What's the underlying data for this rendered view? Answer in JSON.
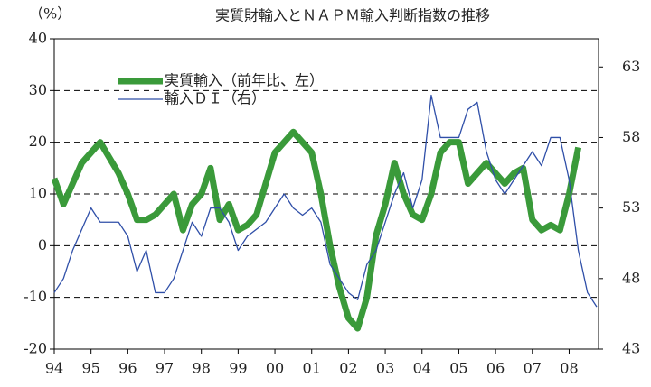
{
  "chart_data": {
    "type": "line",
    "title": "実質財輸入とＮＡＰＭ輸入判断指数の推移",
    "y_label": "（%）",
    "x": [
      1994,
      1994.25,
      1994.5,
      1994.75,
      1995,
      1995.25,
      1995.5,
      1995.75,
      1996,
      1996.25,
      1996.5,
      1996.75,
      1997,
      1997.25,
      1997.5,
      1997.75,
      1998,
      1998.25,
      1998.5,
      1998.75,
      1999,
      1999.25,
      1999.5,
      1999.75,
      2000,
      2000.25,
      2000.5,
      2000.75,
      2001,
      2001.25,
      2001.5,
      2001.75,
      2002,
      2002.25,
      2002.5,
      2002.75,
      2003,
      2003.25,
      2003.5,
      2003.75,
      2004,
      2004.25,
      2004.5,
      2004.75,
      2005,
      2005.25,
      2005.5,
      2005.75,
      2006,
      2006.25,
      2006.5,
      2006.75,
      2007,
      2007.25,
      2007.5,
      2007.75,
      2008,
      2008.25,
      2008.5,
      2008.75
    ],
    "series": [
      {
        "name": "実質輸入（前年比、左）",
        "color": "#3a9a3a",
        "axis": "y",
        "values": [
          13,
          8,
          12,
          16,
          18,
          20,
          17,
          14,
          10,
          5,
          5,
          6,
          8,
          10,
          3,
          8,
          10,
          15,
          5,
          8,
          3,
          4,
          6,
          12,
          18,
          20,
          22,
          20,
          18,
          10,
          0,
          -8,
          -14,
          -16,
          -10,
          2,
          8,
          16,
          10,
          6,
          5,
          10,
          18,
          20,
          20,
          12,
          14,
          16,
          14,
          12,
          14,
          15,
          5,
          3,
          4,
          3,
          10,
          19,
          null,
          null
        ]
      },
      {
        "name": "輸入ＤＩ（右）",
        "color": "#2f4fa8",
        "axis": "y2",
        "values": [
          47,
          48,
          50,
          51.5,
          53,
          52,
          52,
          52,
          51,
          48.5,
          50,
          47,
          47,
          48,
          50,
          52,
          51,
          53,
          53,
          52,
          50,
          51,
          51.5,
          52,
          53,
          54,
          53,
          52.5,
          53,
          52,
          49,
          48,
          47,
          46.5,
          49,
          50,
          52,
          54,
          55.5,
          53,
          55,
          61,
          58,
          58,
          58,
          60,
          60.5,
          57,
          55,
          54,
          55,
          56,
          57,
          56,
          58,
          58,
          55,
          50,
          47,
          46
        ]
      }
    ],
    "xlim": [
      1994,
      2008.8
    ],
    "xticks": [
      {
        "value": 1994,
        "label": "94"
      },
      {
        "value": 1995,
        "label": "95"
      },
      {
        "value": 1996,
        "label": "96"
      },
      {
        "value": 1997,
        "label": "97"
      },
      {
        "value": 1998,
        "label": "98"
      },
      {
        "value": 1999,
        "label": "99"
      },
      {
        "value": 2000,
        "label": "00"
      },
      {
        "value": 2001,
        "label": "01"
      },
      {
        "value": 2002,
        "label": "02"
      },
      {
        "value": 2003,
        "label": "03"
      },
      {
        "value": 2004,
        "label": "04"
      },
      {
        "value": 2005,
        "label": "05"
      },
      {
        "value": 2006,
        "label": "06"
      },
      {
        "value": 2007,
        "label": "07"
      },
      {
        "value": 2008,
        "label": "08"
      }
    ],
    "ylim": [
      -20,
      40
    ],
    "yticks": [
      -20,
      -10,
      0,
      10,
      20,
      30,
      40
    ],
    "y2lim": [
      43,
      65
    ],
    "y2ticks": [
      43,
      48,
      53,
      58,
      63
    ],
    "grid": true
  }
}
